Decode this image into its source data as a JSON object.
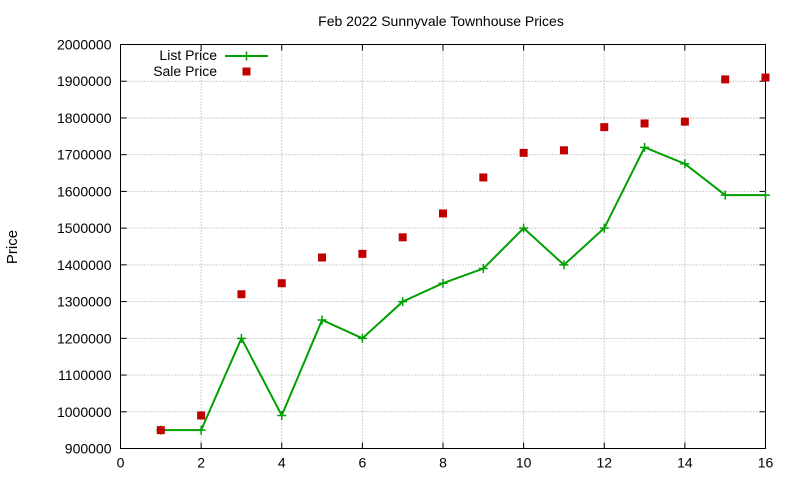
{
  "chart_data": {
    "type": "line",
    "title": "Feb 2022 Sunnyvale Townhouse Prices",
    "xlabel": "",
    "ylabel": "Price",
    "xlim": [
      0,
      16
    ],
    "ylim": [
      900000,
      2000000
    ],
    "x_ticks": [
      0,
      2,
      4,
      6,
      8,
      10,
      12,
      14,
      16
    ],
    "y_ticks": [
      900000,
      1000000,
      1100000,
      1200000,
      1300000,
      1400000,
      1500000,
      1600000,
      1700000,
      1800000,
      1900000,
      2000000
    ],
    "grid": true,
    "legend_position": "top-left",
    "series": [
      {
        "name": "List Price",
        "style": "line with plus markers",
        "color": "#00a000",
        "x": [
          1,
          2,
          3,
          4,
          5,
          6,
          7,
          8,
          9,
          10,
          11,
          12,
          13,
          14,
          15,
          16
        ],
        "y": [
          950000,
          950000,
          1200000,
          990000,
          1250000,
          1200000,
          1300000,
          1350000,
          1390000,
          1500000,
          1400000,
          1500000,
          1720000,
          1675000,
          1590000,
          1590000
        ]
      },
      {
        "name": "Sale Price",
        "style": "square markers",
        "color": "#c00000",
        "x": [
          1,
          2,
          3,
          4,
          5,
          6,
          7,
          8,
          9,
          10,
          11,
          12,
          13,
          14,
          15,
          16
        ],
        "y": [
          950000,
          990000,
          1320000,
          1350000,
          1420000,
          1430000,
          1475000,
          1540000,
          1638000,
          1705000,
          1712000,
          1775000,
          1785000,
          1790000,
          1905000,
          1910000
        ]
      }
    ]
  }
}
